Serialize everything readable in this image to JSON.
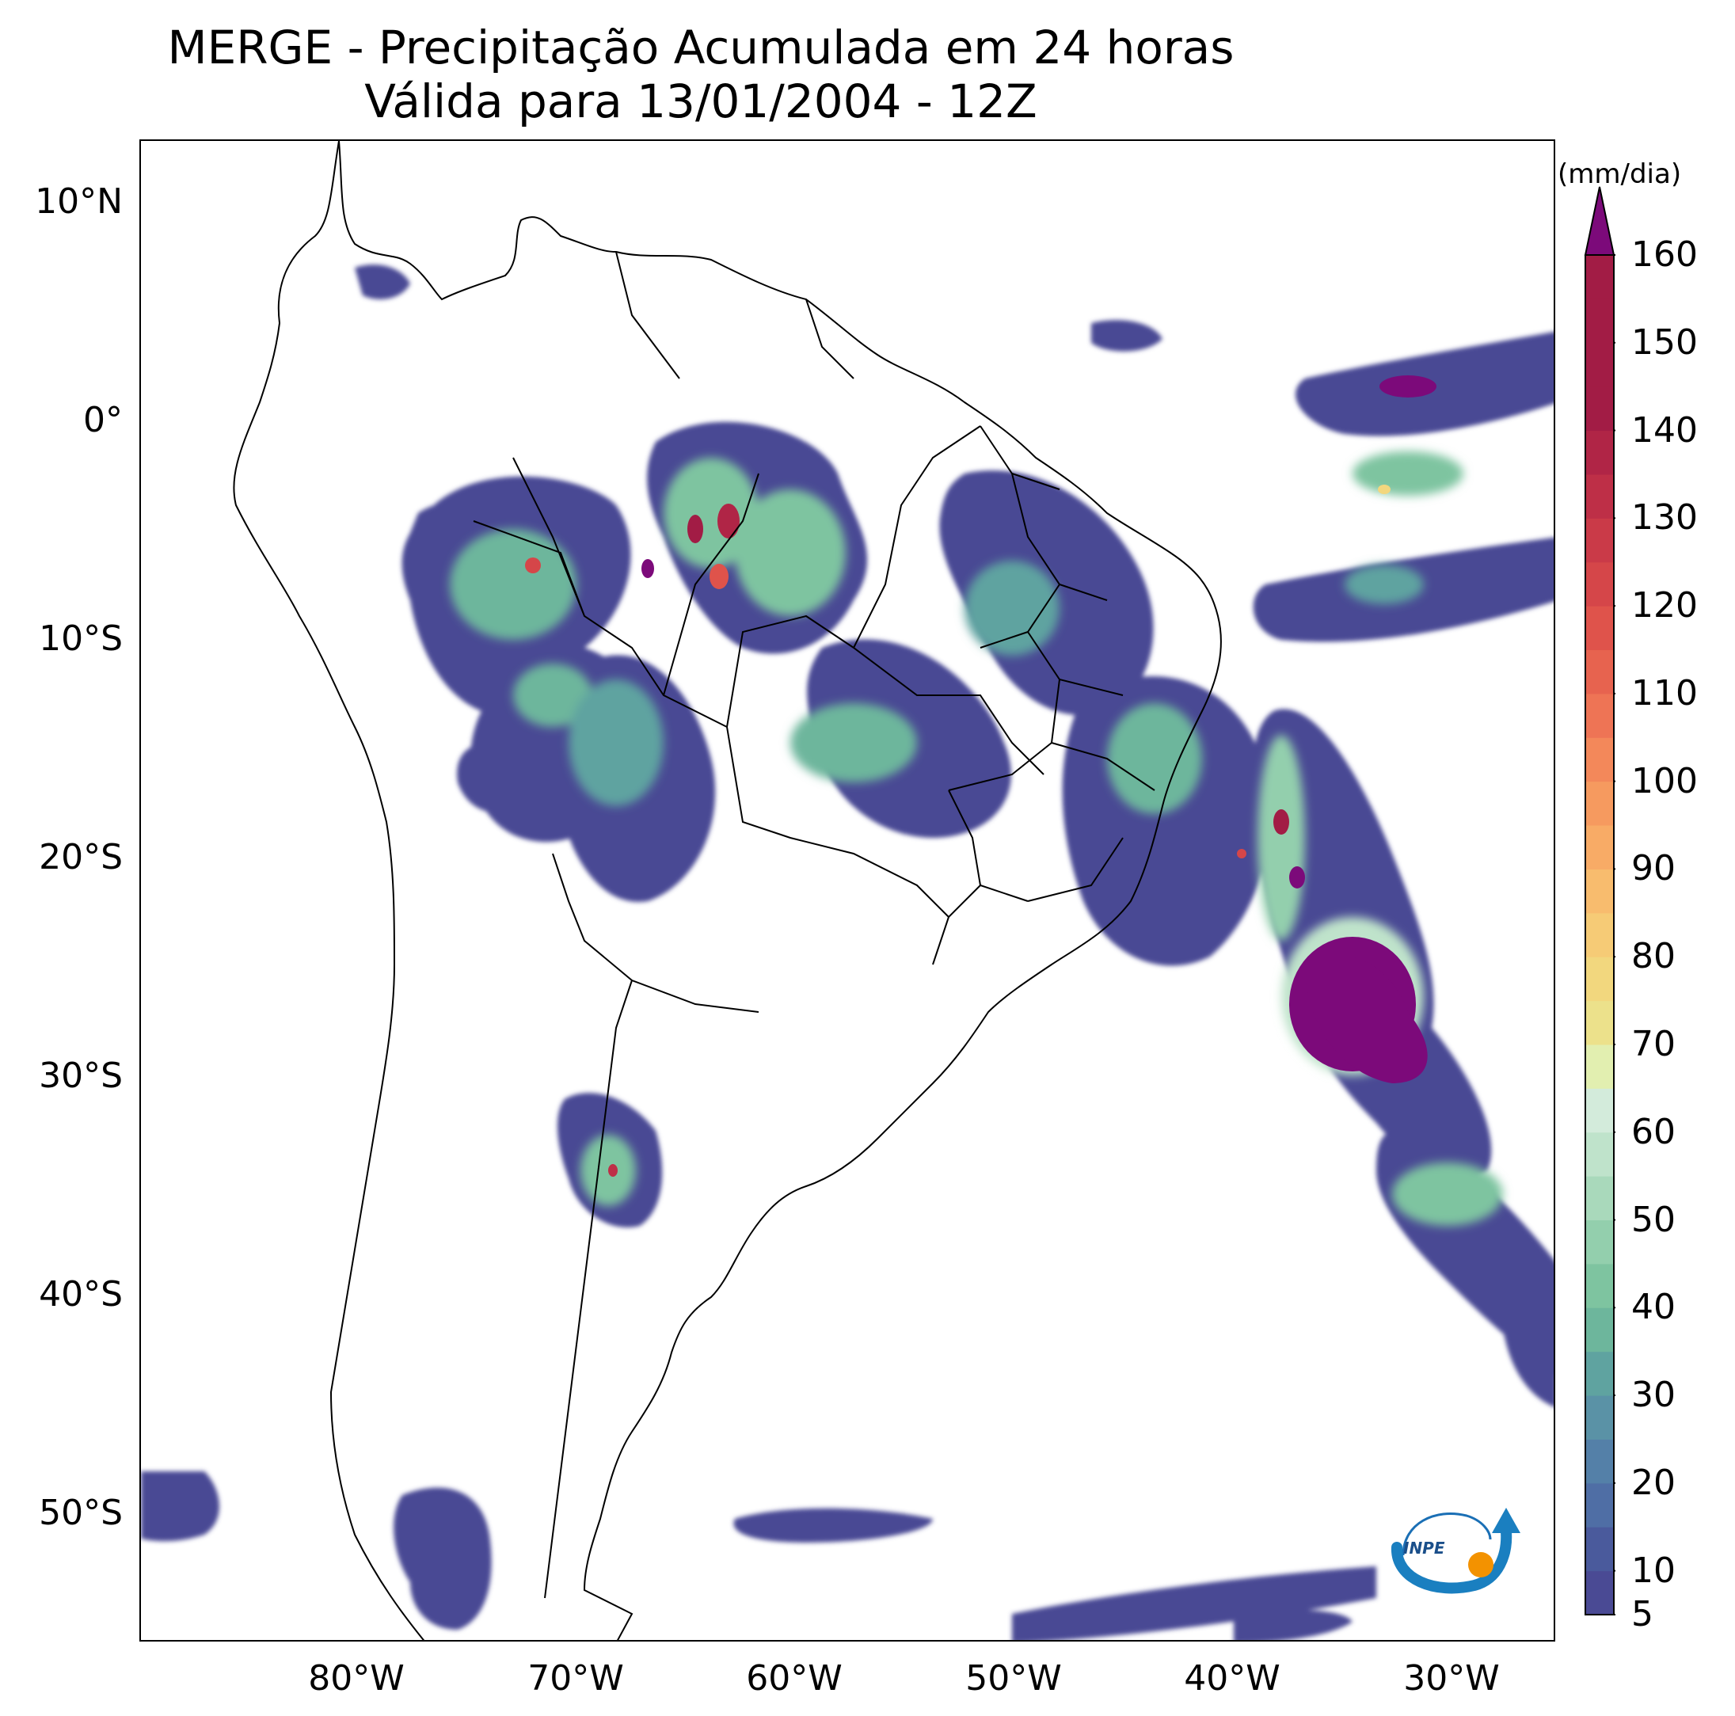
{
  "title": {
    "line1": "MERGE - Precipitação Acumulada em 24 horas",
    "line2": "Válida para 13/01/2004 - 12Z"
  },
  "map": {
    "lat_ticks": [
      "10°N",
      "0°",
      "10°S",
      "20°S",
      "30°S",
      "40°S",
      "50°S"
    ],
    "lon_ticks": [
      "80°W",
      "70°W",
      "60°W",
      "50°W",
      "40°W",
      "30°W"
    ],
    "extent": {
      "lon": [
        -90,
        -25
      ],
      "lat": [
        -56,
        13
      ]
    }
  },
  "colorbar": {
    "unit": "(mm/dia)",
    "ticks": [
      "160",
      "150",
      "140",
      "130",
      "120",
      "110",
      "100",
      "90",
      "80",
      "70",
      "60",
      "50",
      "40",
      "30",
      "20",
      "10",
      "5"
    ],
    "levels": [
      5,
      10,
      15,
      20,
      25,
      30,
      35,
      40,
      45,
      50,
      55,
      60,
      65,
      70,
      75,
      80,
      85,
      90,
      95,
      100,
      105,
      110,
      115,
      120,
      125,
      130,
      135,
      140,
      145,
      150,
      155,
      160
    ],
    "colors": [
      "#4a4a94",
      "#4a5a9c",
      "#4f6ea5",
      "#5480a8",
      "#5a92a6",
      "#5fa3a0",
      "#6db69c",
      "#7ec4a0",
      "#93cfad",
      "#a9d9bb",
      "#bfe3cb",
      "#d3ebdb",
      "#e2efb0",
      "#ece18b",
      "#f2d77e",
      "#f6cb76",
      "#f8bc6e",
      "#f8ab66",
      "#f69a5f",
      "#f3885a",
      "#ee7455",
      "#e7634f",
      "#df534b",
      "#d54649",
      "#ca3a48",
      "#be2f47",
      "#b02546",
      "#a21c45"
    ],
    "extend_color": "#7c0a7a"
  },
  "logo": {
    "text": "INPE"
  }
}
